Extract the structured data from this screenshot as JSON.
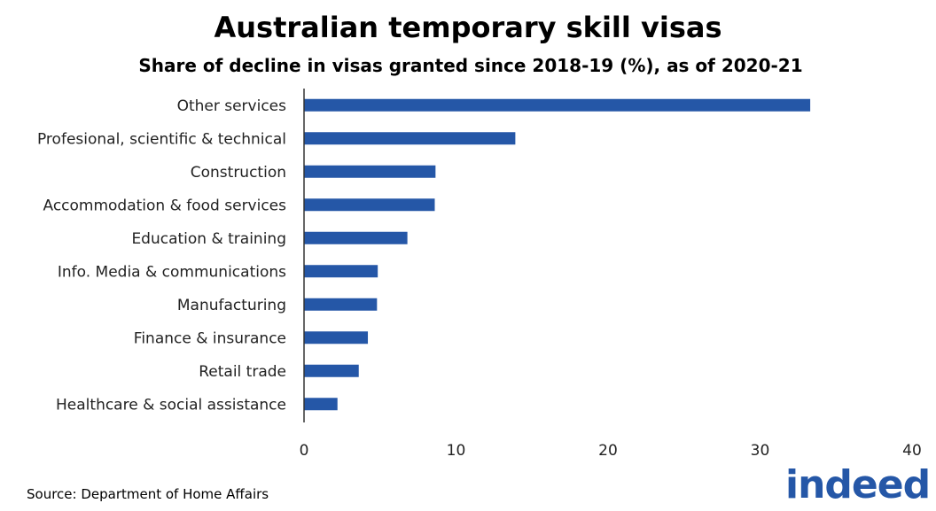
{
  "chart_data": {
    "type": "bar",
    "orientation": "horizontal",
    "title": "Australian temporary skill visas",
    "subtitle": "Share of decline in visas granted since 2018-19 (%), as of 2020-21",
    "categories": [
      "Other services",
      "Profesional, scientific & technical",
      "Construction",
      "Accommodation & food services",
      "Education & training",
      "Info. Media & communications",
      "Manufacturing",
      "Finance & insurance",
      "Retail trade",
      "Healthcare & social assistance"
    ],
    "values": [
      33.3,
      13.9,
      8.65,
      8.6,
      6.8,
      4.85,
      4.8,
      4.2,
      3.6,
      2.2
    ],
    "xlim": [
      0,
      40
    ],
    "xticks": [
      "0",
      "10",
      "20",
      "30",
      "40"
    ],
    "xlabel": "",
    "ylabel": "",
    "grid": false,
    "bar_color": "#2557a7"
  },
  "footer": {
    "source": "Source: Department of Home Affairs",
    "logo": "indeed"
  }
}
